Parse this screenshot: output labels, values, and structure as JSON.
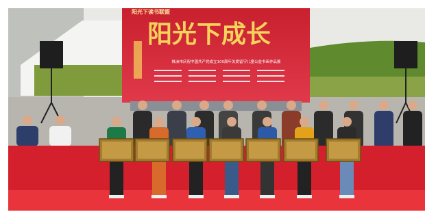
{
  "banner": {
    "logo": "阳光下读书联盟",
    "title": "阳光下成长",
    "subtitle": "株洲市庆祝中国共产党成立100周年关爱留守儿童公益书画作品展"
  }
}
